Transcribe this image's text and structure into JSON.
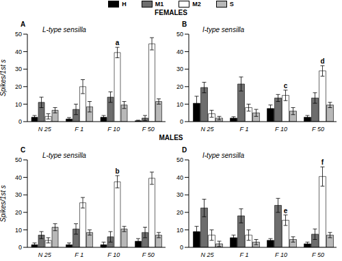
{
  "headings": [
    "FEMALES",
    "MALES"
  ],
  "chart_data": [
    {
      "type": "bar",
      "panel": "A",
      "title": "L-type sensilla",
      "y_label": "Spikes/1st s",
      "categories": [
        "N 25",
        "F 1",
        "F 10",
        "F 50"
      ],
      "ylim": [
        0,
        50
      ],
      "yticks": [
        0,
        10,
        20,
        30,
        40,
        50
      ],
      "series": [
        {
          "name": "H",
          "color": "#000000",
          "values": [
            2.5,
            1.5,
            2.5,
            0.5
          ],
          "errors": [
            1,
            0.8,
            1,
            0.3
          ]
        },
        {
          "name": "M1",
          "color": "#6d6d6d",
          "values": [
            11,
            7,
            14,
            2
          ],
          "errors": [
            3,
            3,
            3,
            1.5
          ]
        },
        {
          "name": "M2",
          "color": "#ffffff",
          "values": [
            3,
            20,
            39.5,
            44.5
          ],
          "errors": [
            1.5,
            4,
            3,
            3.5
          ]
        },
        {
          "name": "S",
          "color": "#b8b8b8",
          "values": [
            6.5,
            8.5,
            9.5,
            11.5
          ],
          "errors": [
            1.5,
            3,
            2,
            1.5
          ]
        }
      ],
      "annotations": [
        {
          "text": "a",
          "category": "F 10",
          "series": "M2"
        }
      ]
    },
    {
      "type": "bar",
      "panel": "B",
      "title": "I-type sensilla",
      "categories": [
        "N 25",
        "F 1",
        "F 10",
        "F 50"
      ],
      "ylim": [
        0,
        50
      ],
      "yticks": [
        0,
        10,
        20,
        30,
        40,
        50
      ],
      "series": [
        {
          "name": "H",
          "color": "#000000",
          "values": [
            10.5,
            2,
            7.5,
            2.5
          ],
          "errors": [
            4,
            0.8,
            2,
            1
          ]
        },
        {
          "name": "M1",
          "color": "#6d6d6d",
          "values": [
            19.5,
            21.5,
            13.5,
            13.5
          ],
          "errors": [
            3,
            4,
            2,
            3
          ]
        },
        {
          "name": "M2",
          "color": "#ffffff",
          "values": [
            4.5,
            8,
            15,
            29
          ],
          "errors": [
            2,
            2,
            3,
            3
          ]
        },
        {
          "name": "S",
          "color": "#b8b8b8",
          "values": [
            2,
            5,
            6,
            9.5
          ],
          "errors": [
            1,
            2,
            2,
            1.5
          ]
        }
      ],
      "annotations": [
        {
          "text": "c",
          "category": "F 10",
          "series": "M2"
        },
        {
          "text": "d",
          "category": "F 50",
          "series": "M2"
        }
      ]
    },
    {
      "type": "bar",
      "panel": "C",
      "title": "L-type sensilla",
      "y_label": "Spikes/1st s",
      "categories": [
        "N 25",
        "F 1",
        "F 10",
        "F 50"
      ],
      "ylim": [
        0,
        50
      ],
      "yticks": [
        0,
        10,
        20,
        30,
        40,
        50
      ],
      "series": [
        {
          "name": "H",
          "color": "#000000",
          "values": [
            1.5,
            1.5,
            1.5,
            3.5
          ],
          "errors": [
            1,
            1,
            1.5,
            1.5
          ]
        },
        {
          "name": "M1",
          "color": "#6d6d6d",
          "values": [
            7,
            10.5,
            6,
            8.5
          ],
          "errors": [
            2,
            3,
            3,
            3
          ]
        },
        {
          "name": "M2",
          "color": "#ffffff",
          "values": [
            4,
            25.5,
            37.5,
            39.5
          ],
          "errors": [
            1.5,
            3,
            3.5,
            3.5
          ]
        },
        {
          "name": "S",
          "color": "#b8b8b8",
          "values": [
            11.5,
            8.5,
            10.5,
            7
          ],
          "errors": [
            2,
            1.5,
            1.5,
            1.5
          ]
        }
      ],
      "annotations": [
        {
          "text": "b",
          "category": "F 10",
          "series": "M2"
        }
      ]
    },
    {
      "type": "bar",
      "panel": "D",
      "title": "I-type sensilla",
      "categories": [
        "N 25",
        "F 1",
        "F 10",
        "F 50"
      ],
      "ylim": [
        0,
        50
      ],
      "yticks": [
        0,
        10,
        20,
        30,
        40,
        50
      ],
      "series": [
        {
          "name": "H",
          "color": "#000000",
          "values": [
            9,
            5.5,
            4,
            2
          ],
          "errors": [
            3,
            1.5,
            1,
            1
          ]
        },
        {
          "name": "M1",
          "color": "#6d6d6d",
          "values": [
            22.5,
            18,
            24,
            7.5
          ],
          "errors": [
            5,
            4,
            4,
            3
          ]
        },
        {
          "name": "M2",
          "color": "#ffffff",
          "values": [
            7,
            7,
            15.5,
            40.5
          ],
          "errors": [
            3,
            3,
            3,
            5.5
          ]
        },
        {
          "name": "S",
          "color": "#b8b8b8",
          "values": [
            2,
            3,
            4.5,
            7
          ],
          "errors": [
            1.5,
            1.5,
            1.5,
            1.5
          ]
        }
      ],
      "annotations": [
        {
          "text": "e",
          "category": "F 10",
          "series": "M2"
        },
        {
          "text": "f",
          "category": "F 50",
          "series": "M2"
        }
      ]
    }
  ]
}
